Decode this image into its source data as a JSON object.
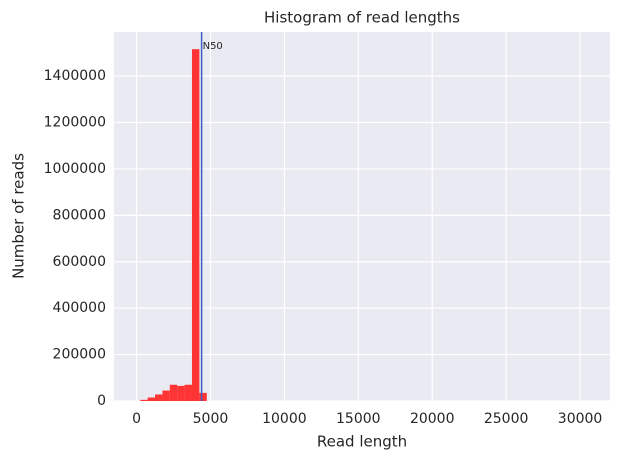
{
  "chart_data": {
    "type": "histogram",
    "title": "Histogram of read lengths",
    "x_label": "Read length",
    "y_label": "Number of reads",
    "bins": [
      250,
      750,
      1250,
      1750,
      2250,
      2750,
      3250,
      3750,
      4250,
      4750
    ],
    "values": [
      5000,
      15000,
      28000,
      45000,
      70000,
      65000,
      70000,
      1516000,
      35000
    ],
    "color": "#ff2a2a",
    "xlim": [
      -1525,
      32025
    ],
    "xticks": [
      0,
      5000,
      10000,
      15000,
      20000,
      25000,
      30000
    ],
    "ylim": [
      0,
      1590000
    ],
    "yticks": [
      0,
      200000,
      400000,
      600000,
      800000,
      1000000,
      1200000,
      1400000
    ],
    "grid": true,
    "annotations": [
      {
        "label": "N50",
        "x": 4400,
        "color": "#3b5fc0"
      }
    ]
  }
}
